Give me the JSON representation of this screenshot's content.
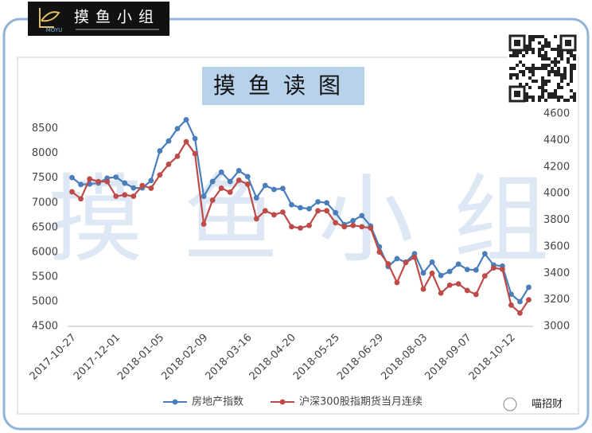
{
  "logo": {
    "text": "摸鱼小组",
    "sub": "MOYU"
  },
  "watermark": "摸鱼小组",
  "footer": "喵招财",
  "chart_data": {
    "type": "line",
    "title": "摸鱼读图",
    "categories": [
      "2017-10-27",
      null,
      null,
      null,
      null,
      "2017-12-01",
      null,
      null,
      null,
      null,
      "2018-01-05",
      null,
      null,
      null,
      null,
      "2018-02-09",
      null,
      null,
      null,
      null,
      "2018-03-16",
      null,
      null,
      null,
      null,
      "2018-04-20",
      null,
      null,
      null,
      null,
      "2018-05-25",
      null,
      null,
      null,
      null,
      "2018-06-29",
      null,
      null,
      null,
      null,
      "2018-08-03",
      null,
      null,
      null,
      null,
      "2018-09-07",
      null,
      null,
      null,
      null,
      "2018-10-12",
      null,
      null
    ],
    "series": [
      {
        "name": "房地产指数",
        "color": "#4a7ebb",
        "values": [
          7510,
          7370,
          7380,
          7400,
          7500,
          7520,
          7400,
          7300,
          7300,
          7450,
          8050,
          8250,
          8500,
          8680,
          8300,
          7130,
          7430,
          7620,
          7430,
          7650,
          7530,
          7100,
          7350,
          7270,
          7290,
          6960,
          6900,
          6880,
          7020,
          7000,
          6800,
          6560,
          6640,
          6740,
          6530,
          6110,
          5710,
          5870,
          5800,
          5970,
          5580,
          5800,
          5530,
          5610,
          5760,
          5650,
          5640,
          5970,
          5740,
          5720,
          5150,
          5000,
          5290
        ]
      },
      {
        "name": "沪深300股指期货当月连续",
        "color": "#be4b48",
        "axis": "y2",
        "values": [
          4013,
          3960,
          4110,
          4090,
          4090,
          3980,
          3990,
          3980,
          4060,
          4040,
          4140,
          4220,
          4280,
          4390,
          4300,
          3770,
          3950,
          4040,
          4010,
          4100,
          4070,
          3810,
          3870,
          3840,
          3860,
          3750,
          3740,
          3760,
          3870,
          3870,
          3780,
          3750,
          3760,
          3750,
          3740,
          3560,
          3470,
          3330,
          3480,
          3520,
          3280,
          3400,
          3250,
          3310,
          3320,
          3270,
          3240,
          3380,
          3440,
          3430,
          3160,
          3100,
          3200
        ]
      }
    ],
    "ylim": [
      4500,
      8800
    ],
    "yticks": [
      4500,
      5000,
      5500,
      6000,
      6500,
      7000,
      7500,
      8000,
      8500
    ],
    "y2lim": [
      3000,
      4600
    ],
    "y2ticks": [
      3000,
      3200,
      3400,
      3600,
      3800,
      4000,
      4200,
      4400,
      4600
    ],
    "grid": false,
    "legend": "bottom"
  }
}
